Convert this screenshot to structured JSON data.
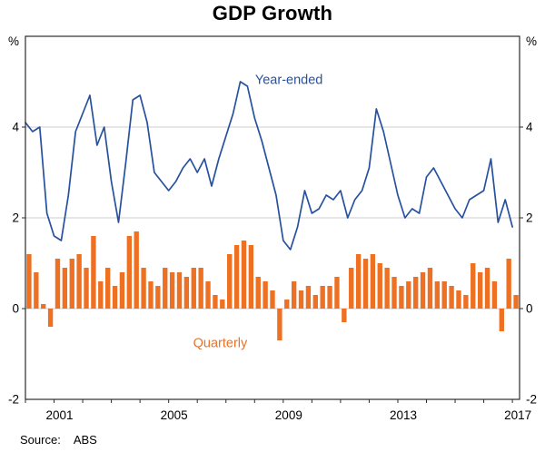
{
  "page": {
    "title": "GDP Growth",
    "source_label": "Source:",
    "source_value": "ABS"
  },
  "chart_data": {
    "type": "mixed",
    "title": "GDP Growth",
    "xlim": [
      2000,
      2017.25
    ],
    "ylim": [
      -2,
      6
    ],
    "x_start": 2000.0,
    "x_step": 0.25,
    "y_ticks": [
      -2,
      0,
      2,
      4
    ],
    "grid_values": [
      0,
      2,
      4
    ],
    "y_unit": "%",
    "x_ticks_labeled": [
      2001,
      2005,
      2009,
      2013,
      2017
    ],
    "frame_color": "#2b2b2b",
    "grid_color": "#cdcdcd",
    "series": [
      {
        "name": "Year-ended",
        "type": "line",
        "color": "#27519f",
        "values": [
          4.1,
          3.9,
          4.0,
          2.1,
          1.6,
          1.5,
          2.5,
          3.9,
          4.3,
          4.7,
          3.6,
          4.0,
          2.8,
          1.9,
          3.2,
          4.6,
          4.7,
          4.1,
          3.0,
          2.8,
          2.6,
          2.8,
          3.1,
          3.3,
          3.0,
          3.3,
          2.7,
          3.3,
          3.8,
          4.3,
          5.0,
          4.9,
          4.2,
          3.7,
          3.1,
          2.5,
          1.5,
          1.3,
          1.8,
          2.6,
          2.1,
          2.2,
          2.5,
          2.4,
          2.6,
          2.0,
          2.4,
          2.6,
          3.1,
          4.4,
          3.9,
          3.2,
          2.5,
          2.0,
          2.2,
          2.1,
          2.9,
          3.1,
          2.8,
          2.5,
          2.2,
          2.0,
          2.4,
          2.5,
          2.6,
          3.3,
          1.9,
          2.4,
          1.8
        ]
      },
      {
        "name": "Quarterly",
        "type": "bar",
        "color": "#ee7023",
        "values": [
          1.2,
          0.8,
          0.1,
          -0.4,
          1.1,
          0.9,
          1.1,
          1.2,
          0.9,
          1.6,
          0.6,
          0.9,
          0.5,
          0.8,
          1.6,
          1.7,
          0.9,
          0.6,
          0.5,
          0.9,
          0.8,
          0.8,
          0.7,
          0.9,
          0.9,
          0.6,
          0.3,
          0.2,
          1.2,
          1.4,
          1.5,
          1.4,
          0.7,
          0.6,
          0.4,
          -0.7,
          0.2,
          0.6,
          0.4,
          0.5,
          0.3,
          0.5,
          0.5,
          0.7,
          -0.3,
          0.9,
          1.2,
          1.1,
          1.2,
          1.0,
          0.9,
          0.7,
          0.5,
          0.6,
          0.7,
          0.8,
          0.9,
          0.6,
          0.6,
          0.5,
          0.4,
          0.3,
          1.0,
          0.8,
          0.9,
          0.6,
          -0.5,
          1.1,
          0.3
        ]
      }
    ],
    "annotations": [
      {
        "text": "Year-ended",
        "x": 2009.2,
        "y": 4.95,
        "color": "#27519f"
      },
      {
        "text": "Quarterly",
        "x": 2006.8,
        "y": -0.85,
        "color": "#ee7023"
      }
    ]
  }
}
